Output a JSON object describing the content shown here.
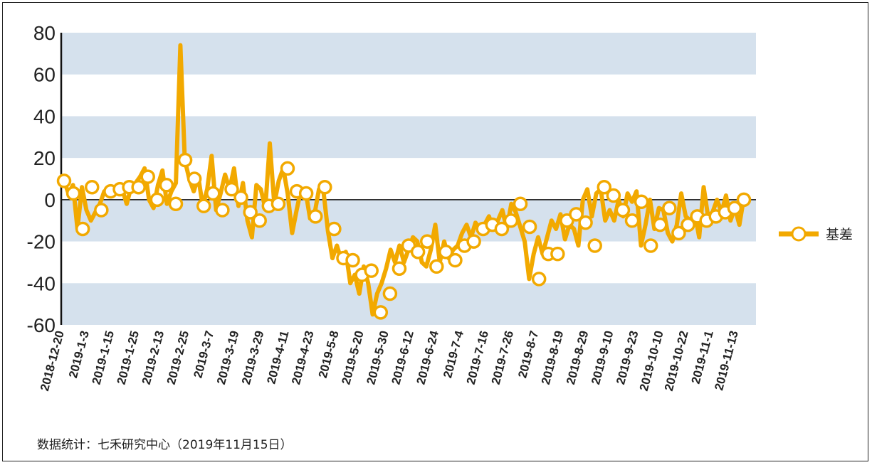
{
  "chart_data": {
    "type": "line",
    "title": "",
    "xlabel": "",
    "ylabel": "",
    "ylim": [
      -60,
      80
    ],
    "yticks": [
      80,
      60,
      40,
      20,
      0,
      -20,
      -40,
      -60
    ],
    "grid": "alternating horizontal bands",
    "legend_position": "right",
    "x_tick_labels": [
      "2018-12-20",
      "2019-1-3",
      "2019-1-15",
      "2019-1-25",
      "2019-2-13",
      "2019-2-25",
      "2019-3-7",
      "2019-3-19",
      "2019-3-29",
      "2019-4-11",
      "2019-4-23",
      "2019-5-8",
      "2019-5-20",
      "2019-5-30",
      "2019-6-12",
      "2019-6-24",
      "2019-7-4",
      "2019-7-16",
      "2019-7-26",
      "2019-8-7",
      "2019-8-19",
      "2019-8-29",
      "2019-9-10",
      "2019-9-23",
      "2019-10-10",
      "2019-10-22",
      "2019-11-1",
      "2019-11-13"
    ],
    "series": [
      {
        "name": "基差",
        "color": "#F2A900",
        "values": [
          9,
          3,
          7,
          -14,
          6,
          -5,
          -10,
          -6,
          -2,
          4,
          3,
          5,
          4,
          5,
          -2,
          6,
          8,
          11,
          15,
          0,
          -4,
          7,
          14,
          -2,
          4,
          8,
          74,
          19,
          10,
          4,
          11,
          -3,
          5,
          21,
          -5,
          3,
          12,
          5,
          15,
          -3,
          8,
          -10,
          -18,
          7,
          5,
          -4,
          27,
          -2,
          9,
          15,
          3,
          -16,
          -5,
          5,
          4,
          -9,
          -7,
          5,
          4,
          -15,
          -28,
          -22,
          -29,
          -25,
          -40,
          -36,
          -45,
          -32,
          -40,
          -55,
          -45,
          -40,
          -33,
          -24,
          -30,
          -22,
          -30,
          -24,
          -18,
          -20,
          -30,
          -32,
          -24,
          -12,
          -30,
          -20,
          -28,
          -24,
          -22,
          -16,
          -12,
          -18,
          -11,
          -14,
          -12,
          -8,
          -14,
          -10,
          -5,
          -14,
          -2,
          -6,
          -13,
          -20,
          -38,
          -26,
          -18,
          -26,
          -18,
          -10,
          -14,
          -7,
          -19,
          -12,
          -14,
          -22,
          0,
          5,
          -8,
          3,
          5,
          -10,
          -5,
          -10,
          0,
          -8,
          3,
          -1,
          4,
          -22,
          -12,
          0,
          -14,
          -4,
          -5,
          -16,
          -20,
          -12,
          3,
          -8,
          -10,
          -6,
          -18,
          6,
          -8,
          -6,
          0,
          -6,
          2,
          -10,
          -4,
          -12,
          1
        ],
        "markers": [
          9,
          3,
          -14,
          6,
          -5,
          4,
          5,
          6,
          6,
          11,
          0,
          7,
          -2,
          19,
          10,
          -3,
          3,
          -5,
          5,
          1,
          -6,
          -10,
          -3,
          -2,
          15,
          4,
          3,
          -8,
          6,
          -14,
          -28,
          -29,
          -36,
          -34,
          -54,
          -45,
          -33,
          -22,
          -25,
          -20,
          -32,
          -25,
          -29,
          -22,
          -20,
          -14,
          -12,
          -14,
          -10,
          -2,
          -13,
          -38,
          -26,
          -26,
          -10,
          -7,
          -11,
          -22,
          6,
          2,
          -5,
          -10,
          -1,
          -22,
          -12,
          -4,
          -16,
          -12,
          -8,
          -10,
          -8,
          -6,
          -4,
          0
        ]
      }
    ]
  },
  "legend": {
    "label": "基差"
  },
  "source_note": "数据统计：七禾研究中心（2019年11月15日）"
}
